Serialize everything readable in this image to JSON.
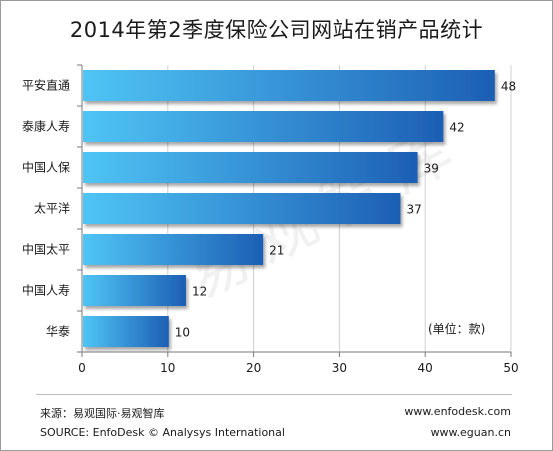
{
  "chart_data": {
    "type": "bar",
    "orientation": "horizontal",
    "title": "2014年第2季度保险公司网站在销产品统计",
    "categories": [
      "平安直通",
      "泰康人寿",
      "中国人保",
      "太平洋",
      "中国太平",
      "中国人寿",
      "华泰"
    ],
    "values": [
      48,
      42,
      39,
      37,
      21,
      12,
      10
    ],
    "xlim": [
      0,
      50
    ],
    "x_ticks": [
      0,
      10,
      20,
      30,
      40,
      50
    ],
    "unit_label": "(单位：款)",
    "grid": "vertical",
    "bar_colors": [
      "#4fc5f5",
      "#1d5fb5"
    ]
  },
  "footer": {
    "source_cn": "来源：易观国际·易观智库",
    "source_en": "SOURCE: EnfoDesk © Analysys International",
    "website1": "www.enfodesk.com",
    "website2": "www.eguan.cn"
  },
  "watermark_text": "易观智库"
}
